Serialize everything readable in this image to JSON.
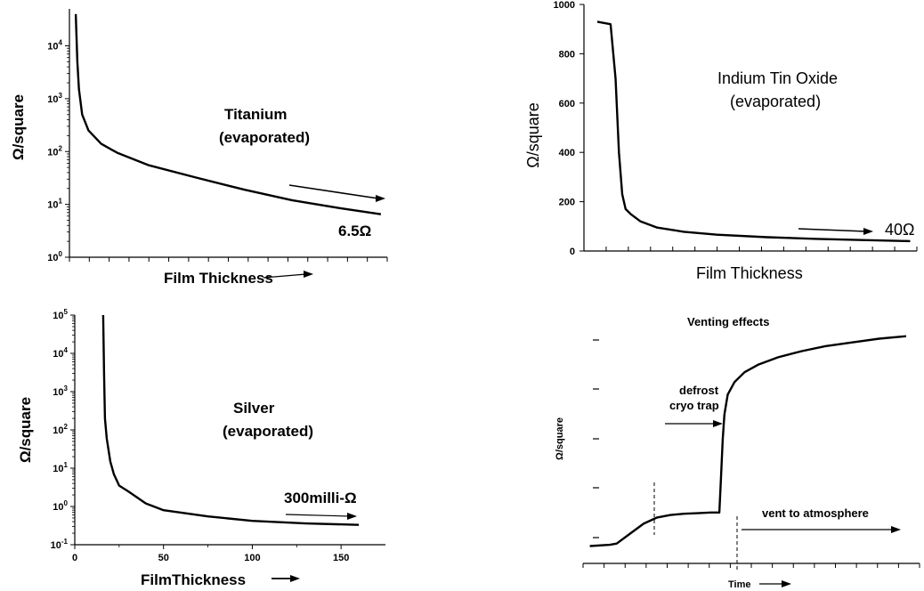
{
  "chart_data": [
    {
      "type": "line",
      "title": "Titanium",
      "subtitle": "(evaporated)",
      "xlabel": "Film Thickness",
      "ylabel": "Ω/square",
      "yscale": "log",
      "ylim": [
        1,
        50000
      ],
      "xlim": [
        0,
        100
      ],
      "y_ticks": [
        {
          "v": 1,
          "t": "10",
          "e": "0"
        },
        {
          "v": 10,
          "t": "10",
          "e": "1"
        },
        {
          "v": 100,
          "t": "10",
          "e": "2"
        },
        {
          "v": 1000,
          "t": "10",
          "e": "3"
        },
        {
          "v": 10000,
          "t": "10",
          "e": "4"
        }
      ],
      "annotation": "6.5Ω",
      "series": [
        {
          "x": [
            2,
            2.5,
            3,
            4,
            6,
            10,
            15,
            25,
            40,
            55,
            70,
            85,
            98
          ],
          "y": [
            40000,
            5000,
            1500,
            500,
            250,
            140,
            95,
            55,
            32,
            19,
            12,
            8.5,
            6.5
          ]
        }
      ]
    },
    {
      "type": "line",
      "title": "Indium Tin Oxide",
      "subtitle": "(evaporated)",
      "xlabel": "Film Thickness",
      "ylabel": "Ω/square",
      "yscale": "linear",
      "ylim": [
        0,
        1000
      ],
      "xlim": [
        0,
        100
      ],
      "y_ticks": [
        {
          "v": 0,
          "t": "0"
        },
        {
          "v": 200,
          "t": "200"
        },
        {
          "v": 400,
          "t": "400"
        },
        {
          "v": 600,
          "t": "600"
        },
        {
          "v": 800,
          "t": "800"
        },
        {
          "v": 1000,
          "t": "1000"
        }
      ],
      "annotation": "40Ω",
      "series": [
        {
          "x": [
            4,
            8,
            9.5,
            10.5,
            11.5,
            12.5,
            14,
            17,
            22,
            30,
            40,
            55,
            70,
            85,
            98
          ],
          "y": [
            930,
            920,
            700,
            400,
            230,
            170,
            150,
            120,
            95,
            78,
            66,
            56,
            49,
            44,
            40
          ]
        }
      ]
    },
    {
      "type": "line",
      "title": "Silver",
      "subtitle": "(evaporated)",
      "xlabel": "FilmThickness",
      "ylabel": "Ω/square",
      "yscale": "log",
      "ylim": [
        0.1,
        100000
      ],
      "xlim": [
        0,
        175
      ],
      "x_ticks": [
        0,
        50,
        100,
        150
      ],
      "y_ticks": [
        {
          "v": 0.1,
          "t": "10",
          "e": "-1"
        },
        {
          "v": 1,
          "t": "10",
          "e": "0"
        },
        {
          "v": 10,
          "t": "10",
          "e": "1"
        },
        {
          "v": 100,
          "t": "10",
          "e": "2"
        },
        {
          "v": 1000,
          "t": "10",
          "e": "3"
        },
        {
          "v": 10000,
          "t": "10",
          "e": "4"
        },
        {
          "v": 100000,
          "t": "10",
          "e": "5"
        }
      ],
      "annotation": "300milli-Ω",
      "series": [
        {
          "x": [
            16,
            16.5,
            17,
            18,
            20,
            22,
            25,
            30,
            40,
            50,
            75,
            100,
            130,
            160
          ],
          "y": [
            100000,
            3000,
            200,
            60,
            15,
            7,
            3.5,
            2.5,
            1.2,
            0.8,
            0.55,
            0.42,
            0.36,
            0.33
          ]
        }
      ]
    },
    {
      "type": "line",
      "title": "Venting effects",
      "xlabel": "Time",
      "ylabel": "Ω/square",
      "yscale": "linear",
      "ylim": [
        0,
        100
      ],
      "xlim": [
        0,
        100
      ],
      "annotations": [
        "defrost",
        "cryo trap",
        "vent to atmosphere"
      ],
      "series": [
        {
          "x": [
            2,
            8,
            10,
            14,
            18,
            22,
            26,
            30,
            34,
            38,
            40.5,
            41,
            41.5,
            42,
            43,
            45,
            48,
            52,
            58,
            65,
            72,
            80,
            88,
            96
          ],
          "y": [
            7,
            7.5,
            8,
            12,
            16,
            18.5,
            19.5,
            20,
            20.2,
            20.5,
            20.5,
            35,
            50,
            60,
            68,
            73,
            77,
            80,
            83,
            85.5,
            87.5,
            89,
            90.5,
            91.5
          ]
        }
      ]
    }
  ]
}
